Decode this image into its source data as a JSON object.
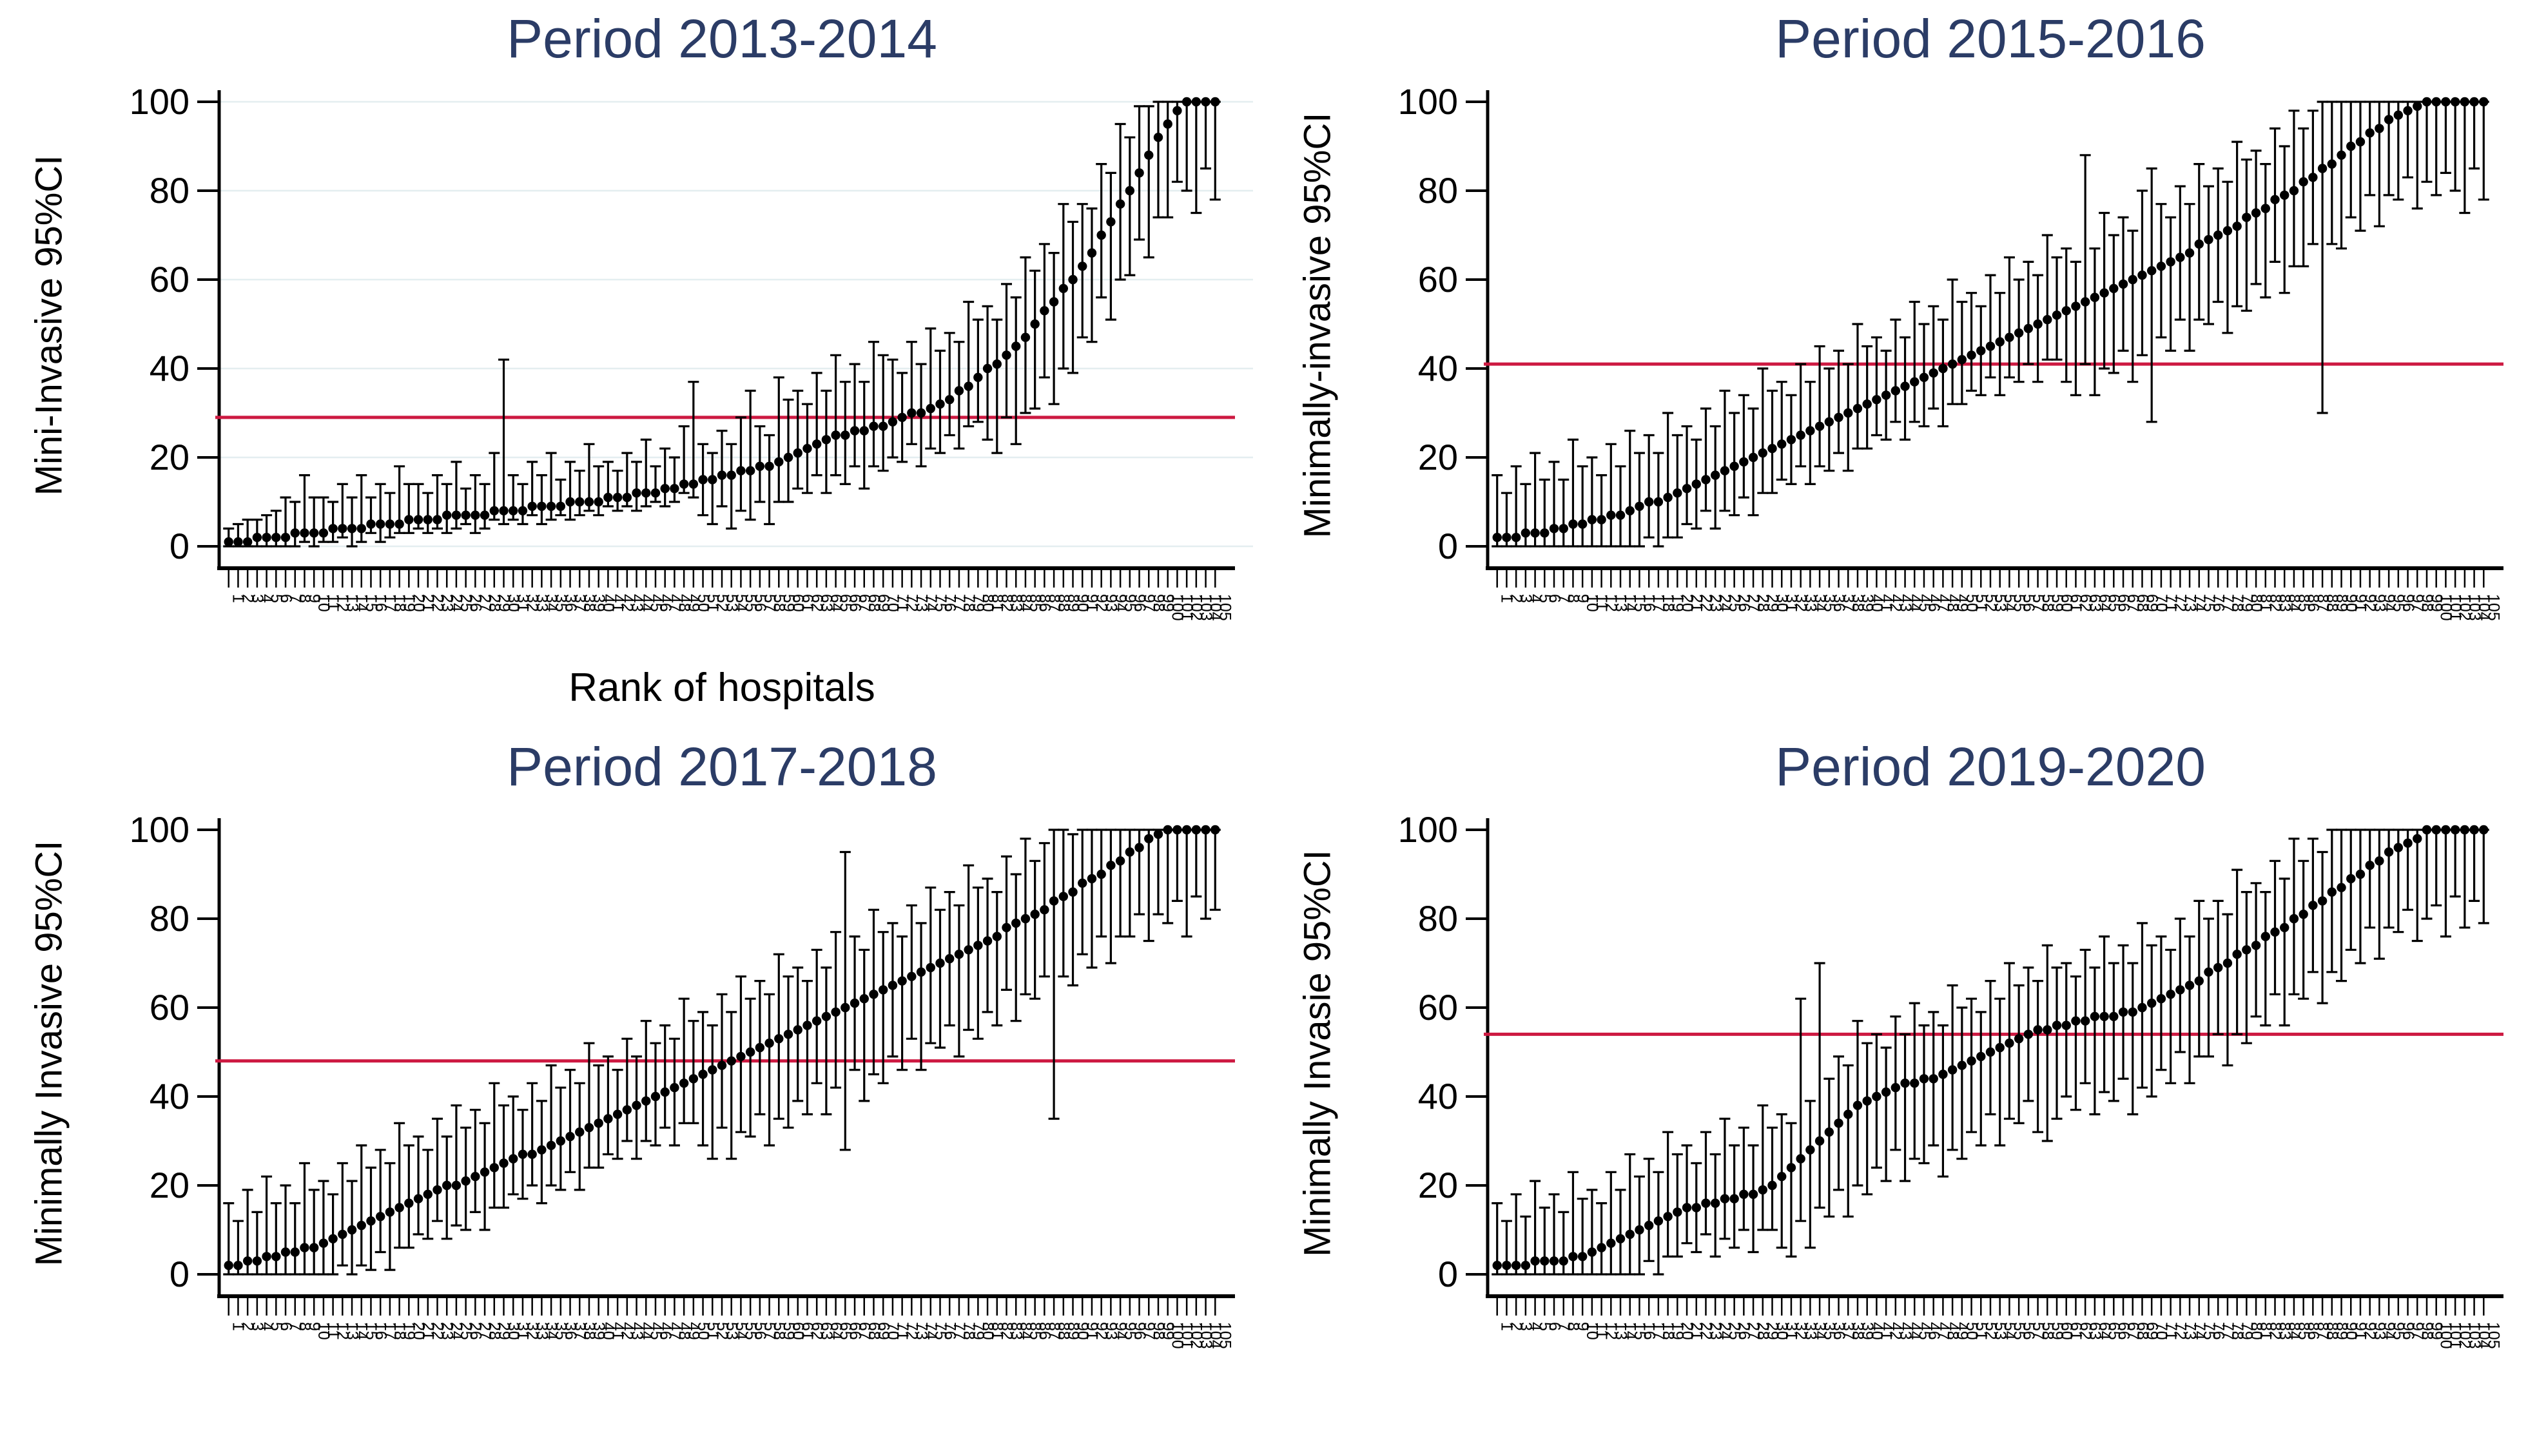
{
  "colors": {
    "title": "#2b3c66",
    "ink": "#000000",
    "ref_line": "#cd1941",
    "grid": "#e4eef0",
    "background": "#ffffff"
  },
  "chart_data": {
    "type": "scatter",
    "subtype": "caterpillar-plot-with-95ci-error-bars",
    "layout": "2x2-grid",
    "ylim": [
      0,
      100
    ],
    "yticks": [
      0,
      20,
      40,
      60,
      80,
      100
    ],
    "x_tick_labels_rule": "hospital ranks 1..n, rotated 90deg",
    "legend": "none",
    "panels": [
      {
        "title": "Period 2013-2014",
        "ylabel": "Mini-Invasive 95%CI",
        "xlabel": "Rank of hospitals",
        "ref_line": 29,
        "gridlines": true,
        "n": 105,
        "est": [
          1,
          1,
          1,
          2,
          2,
          2,
          2,
          3,
          3,
          3,
          3,
          4,
          4,
          4,
          4,
          5,
          5,
          5,
          5,
          6,
          6,
          6,
          6,
          7,
          7,
          7,
          7,
          7,
          8,
          8,
          8,
          8,
          9,
          9,
          9,
          9,
          10,
          10,
          10,
          10,
          11,
          11,
          11,
          12,
          12,
          12,
          13,
          13,
          14,
          14,
          15,
          15,
          16,
          16,
          17,
          17,
          18,
          18,
          19,
          20,
          21,
          22,
          23,
          24,
          25,
          25,
          26,
          26,
          27,
          27,
          28,
          29,
          30,
          30,
          31,
          32,
          33,
          35,
          36,
          38,
          40,
          41,
          43,
          45,
          47,
          50,
          53,
          55,
          58,
          60,
          63,
          66,
          70,
          73,
          77,
          80,
          84,
          88,
          92,
          95,
          98,
          100,
          100,
          100,
          100
        ],
        "lo": [
          0,
          0,
          0,
          0,
          0,
          0,
          0,
          0,
          1,
          0,
          1,
          1,
          2,
          0,
          1,
          3,
          1,
          2,
          3,
          3,
          4,
          3,
          4,
          3,
          4,
          5,
          3,
          4,
          6,
          5,
          6,
          5,
          7,
          5,
          6,
          7,
          6,
          7,
          8,
          7,
          9,
          8,
          9,
          8,
          9,
          10,
          9,
          10,
          12,
          11,
          7,
          5,
          9,
          4,
          8,
          6,
          10,
          5,
          10,
          10,
          13,
          12,
          16,
          12,
          16,
          14,
          18,
          13,
          18,
          17,
          20,
          19,
          23,
          18,
          22,
          21,
          25,
          22,
          27,
          28,
          24,
          21,
          29,
          23,
          30,
          31,
          38,
          32,
          40,
          39,
          47,
          46,
          56,
          51,
          60,
          61,
          69,
          65,
          74,
          74,
          82,
          80,
          75,
          85,
          78
        ],
        "hi": [
          4,
          5,
          6,
          6,
          7,
          8,
          11,
          10,
          16,
          11,
          11,
          10,
          14,
          11,
          16,
          11,
          14,
          12,
          18,
          14,
          14,
          12,
          16,
          14,
          19,
          13,
          16,
          14,
          21,
          42,
          16,
          14,
          19,
          16,
          21,
          15,
          19,
          17,
          23,
          18,
          19,
          17,
          21,
          19,
          24,
          18,
          22,
          20,
          27,
          37,
          23,
          21,
          26,
          23,
          29,
          35,
          27,
          25,
          38,
          33,
          35,
          32,
          39,
          35,
          43,
          37,
          41,
          37,
          46,
          43,
          42,
          39,
          46,
          41,
          49,
          44,
          48,
          46,
          55,
          51,
          54,
          51,
          59,
          56,
          65,
          62,
          68,
          66,
          77,
          73,
          77,
          76,
          86,
          84,
          95,
          92,
          99,
          99,
          100,
          100,
          100,
          100,
          100,
          100,
          100
        ]
      },
      {
        "title": "Period 2015-2016",
        "ylabel": "Minimally-invasive 95%CI",
        "xlabel": "",
        "ref_line": 41,
        "gridlines": false,
        "n": 105,
        "est": [
          2,
          2,
          2,
          3,
          3,
          3,
          4,
          4,
          5,
          5,
          6,
          6,
          7,
          7,
          8,
          9,
          10,
          10,
          11,
          12,
          13,
          14,
          15,
          16,
          17,
          18,
          19,
          20,
          21,
          22,
          23,
          24,
          25,
          26,
          27,
          28,
          29,
          30,
          31,
          32,
          33,
          34,
          35,
          36,
          37,
          38,
          39,
          40,
          41,
          42,
          43,
          44,
          45,
          46,
          47,
          48,
          49,
          50,
          51,
          52,
          53,
          54,
          55,
          56,
          57,
          58,
          59,
          60,
          61,
          62,
          63,
          64,
          65,
          66,
          68,
          69,
          70,
          71,
          72,
          74,
          75,
          76,
          78,
          79,
          80,
          82,
          83,
          85,
          86,
          88,
          90,
          91,
          93,
          94,
          96,
          97,
          98,
          99,
          100,
          100,
          100,
          100,
          100,
          100,
          100
        ],
        "lo": [
          0,
          0,
          0,
          0,
          0,
          0,
          0,
          0,
          0,
          0,
          0,
          0,
          0,
          0,
          0,
          0,
          2,
          0,
          2,
          2,
          5,
          4,
          8,
          4,
          8,
          7,
          11,
          7,
          12,
          12,
          15,
          14,
          18,
          14,
          18,
          17,
          21,
          17,
          22,
          22,
          25,
          24,
          28,
          24,
          28,
          27,
          31,
          27,
          32,
          32,
          35,
          34,
          38,
          34,
          38,
          37,
          41,
          37,
          42,
          42,
          37,
          34,
          41,
          34,
          40,
          39,
          44,
          37,
          43,
          28,
          47,
          44,
          51,
          44,
          51,
          50,
          55,
          48,
          54,
          53,
          59,
          56,
          64,
          57,
          63,
          63,
          68,
          30,
          68,
          67,
          74,
          71,
          79,
          72,
          79,
          78,
          83,
          76,
          82,
          79,
          84,
          80,
          75,
          85,
          78
        ],
        "hi": [
          16,
          12,
          18,
          14,
          21,
          15,
          19,
          15,
          24,
          18,
          20,
          16,
          23,
          18,
          26,
          21,
          25,
          21,
          30,
          25,
          27,
          24,
          31,
          27,
          35,
          30,
          34,
          31,
          40,
          35,
          37,
          34,
          41,
          37,
          45,
          40,
          44,
          41,
          50,
          45,
          47,
          44,
          51,
          47,
          55,
          50,
          54,
          51,
          60,
          55,
          57,
          54,
          61,
          57,
          65,
          60,
          64,
          61,
          70,
          65,
          67,
          64,
          88,
          67,
          75,
          70,
          74,
          71,
          80,
          85,
          77,
          74,
          81,
          77,
          86,
          81,
          85,
          82,
          91,
          87,
          89,
          86,
          94,
          90,
          98,
          94,
          98,
          100,
          100,
          100,
          100,
          100,
          100,
          100,
          100,
          100,
          100,
          100,
          100,
          100,
          100,
          100,
          100,
          100,
          100
        ]
      },
      {
        "title": "Period 2017-2018",
        "ylabel": "Minimally Invasive 95%CI",
        "xlabel": "",
        "ref_line": 48,
        "gridlines": false,
        "n": 105,
        "est": [
          2,
          2,
          3,
          3,
          4,
          4,
          5,
          5,
          6,
          6,
          7,
          8,
          9,
          10,
          11,
          12,
          13,
          14,
          15,
          16,
          17,
          18,
          19,
          20,
          20,
          21,
          22,
          23,
          24,
          25,
          26,
          27,
          27,
          28,
          29,
          30,
          31,
          32,
          33,
          34,
          35,
          36,
          37,
          38,
          39,
          40,
          41,
          42,
          43,
          44,
          45,
          46,
          47,
          48,
          49,
          50,
          51,
          52,
          53,
          54,
          55,
          56,
          57,
          58,
          59,
          60,
          61,
          62,
          63,
          64,
          65,
          66,
          67,
          68,
          69,
          70,
          71,
          72,
          73,
          74,
          75,
          76,
          78,
          79,
          80,
          81,
          82,
          84,
          85,
          86,
          88,
          89,
          90,
          92,
          93,
          95,
          96,
          98,
          99,
          100,
          100,
          100,
          100,
          100,
          100
        ],
        "lo": [
          0,
          0,
          0,
          0,
          0,
          0,
          0,
          0,
          0,
          0,
          0,
          0,
          2,
          0,
          2,
          1,
          5,
          1,
          6,
          6,
          9,
          8,
          12,
          8,
          11,
          10,
          14,
          10,
          15,
          15,
          18,
          17,
          20,
          16,
          20,
          19,
          23,
          19,
          24,
          24,
          27,
          26,
          30,
          26,
          30,
          29,
          33,
          29,
          34,
          34,
          29,
          26,
          33,
          26,
          32,
          31,
          36,
          29,
          35,
          33,
          39,
          36,
          43,
          36,
          42,
          28,
          46,
          39,
          45,
          43,
          49,
          46,
          53,
          46,
          52,
          51,
          56,
          49,
          55,
          53,
          59,
          56,
          64,
          57,
          63,
          62,
          67,
          35,
          67,
          65,
          72,
          69,
          76,
          70,
          76,
          76,
          81,
          75,
          81,
          79,
          84,
          76,
          85,
          80,
          82
        ],
        "hi": [
          16,
          12,
          19,
          14,
          22,
          16,
          20,
          16,
          25,
          19,
          21,
          18,
          25,
          21,
          29,
          24,
          28,
          25,
          34,
          29,
          31,
          28,
          35,
          31,
          38,
          33,
          37,
          34,
          43,
          38,
          40,
          37,
          43,
          39,
          47,
          42,
          46,
          43,
          52,
          47,
          49,
          46,
          53,
          49,
          57,
          52,
          56,
          53,
          62,
          57,
          59,
          56,
          63,
          59,
          67,
          62,
          66,
          63,
          72,
          67,
          69,
          66,
          73,
          69,
          77,
          95,
          76,
          73,
          82,
          77,
          79,
          76,
          83,
          79,
          87,
          82,
          86,
          83,
          92,
          87,
          89,
          86,
          94,
          90,
          98,
          93,
          97,
          100,
          100,
          99,
          100,
          100,
          100,
          100,
          100,
          100,
          100,
          100,
          100,
          100,
          100,
          100,
          100,
          100,
          100
        ]
      },
      {
        "title": "Period 2019-2020",
        "ylabel": "Minimally Invasie 95%CI",
        "xlabel": "",
        "ref_line": 54,
        "gridlines": false,
        "n": 105,
        "est": [
          2,
          2,
          2,
          2,
          3,
          3,
          3,
          3,
          4,
          4,
          5,
          6,
          7,
          8,
          9,
          10,
          11,
          12,
          13,
          14,
          15,
          15,
          16,
          16,
          17,
          17,
          18,
          18,
          19,
          20,
          22,
          24,
          26,
          28,
          30,
          32,
          34,
          36,
          38,
          39,
          40,
          41,
          42,
          43,
          43,
          44,
          44,
          45,
          46,
          47,
          48,
          49,
          50,
          51,
          52,
          53,
          54,
          55,
          55,
          56,
          56,
          57,
          57,
          58,
          58,
          58,
          59,
          59,
          60,
          61,
          62,
          63,
          64,
          65,
          66,
          68,
          69,
          70,
          72,
          73,
          74,
          76,
          77,
          78,
          80,
          81,
          83,
          84,
          86,
          87,
          89,
          90,
          92,
          93,
          95,
          96,
          97,
          98,
          100,
          100,
          100,
          100,
          100,
          100,
          100
        ],
        "lo": [
          0,
          0,
          0,
          0,
          0,
          0,
          0,
          0,
          0,
          0,
          0,
          0,
          0,
          0,
          0,
          0,
          3,
          0,
          4,
          4,
          7,
          5,
          9,
          4,
          8,
          6,
          10,
          5,
          10,
          10,
          6,
          4,
          12,
          6,
          15,
          13,
          19,
          13,
          20,
          18,
          24,
          21,
          28,
          21,
          26,
          25,
          29,
          22,
          28,
          26,
          32,
          29,
          36,
          29,
          35,
          34,
          39,
          32,
          30,
          35,
          40,
          37,
          43,
          36,
          41,
          39,
          44,
          36,
          42,
          40,
          46,
          43,
          50,
          43,
          49,
          49,
          54,
          47,
          54,
          52,
          58,
          56,
          63,
          56,
          63,
          62,
          68,
          61,
          68,
          66,
          73,
          70,
          78,
          71,
          78,
          77,
          82,
          75,
          80,
          83,
          76,
          85,
          78,
          84,
          79
        ],
        "hi": [
          16,
          12,
          18,
          13,
          21,
          15,
          18,
          14,
          23,
          17,
          19,
          16,
          23,
          19,
          27,
          22,
          26,
          23,
          32,
          27,
          29,
          25,
          32,
          27,
          35,
          29,
          33,
          29,
          38,
          33,
          36,
          34,
          62,
          39,
          70,
          44,
          49,
          47,
          57,
          52,
          54,
          51,
          58,
          54,
          61,
          56,
          59,
          56,
          65,
          60,
          62,
          59,
          66,
          62,
          70,
          65,
          69,
          66,
          74,
          69,
          70,
          67,
          73,
          69,
          76,
          70,
          74,
          70,
          79,
          74,
          76,
          73,
          80,
          76,
          84,
          80,
          84,
          81,
          91,
          86,
          88,
          86,
          93,
          89,
          98,
          93,
          98,
          95,
          100,
          100,
          100,
          100,
          100,
          100,
          100,
          100,
          100,
          100,
          100,
          100,
          100,
          100,
          100,
          100,
          100
        ]
      }
    ]
  }
}
